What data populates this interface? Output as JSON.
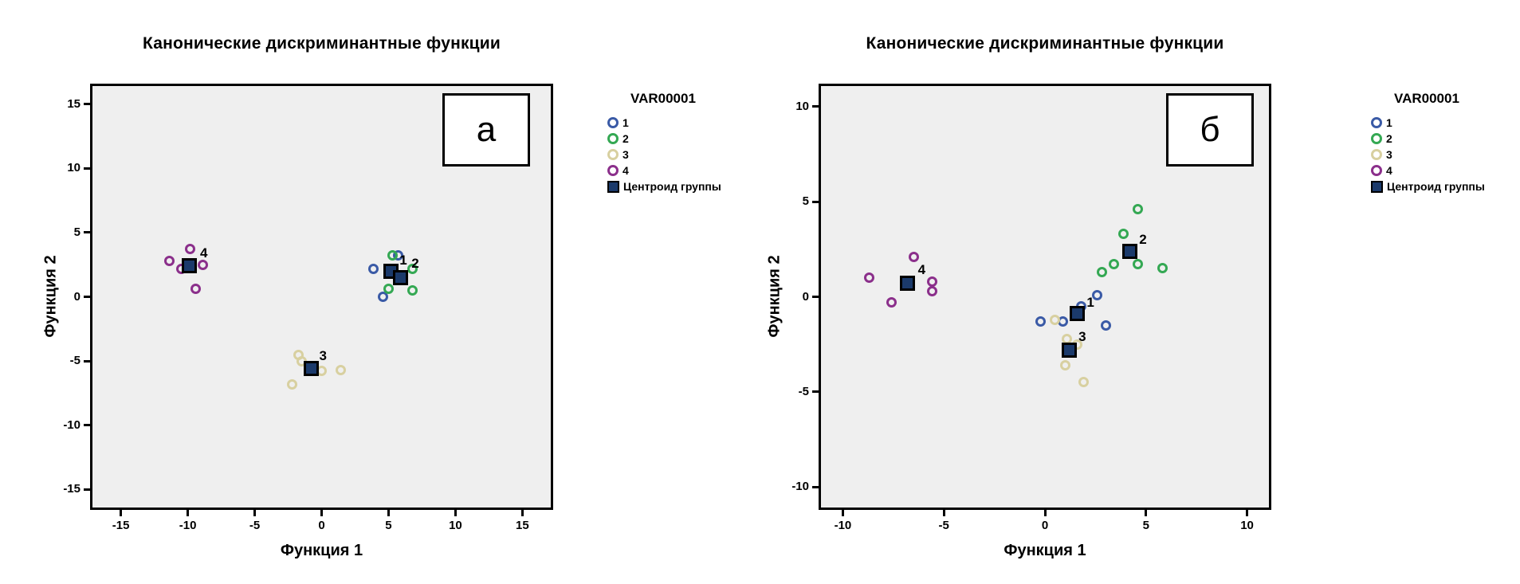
{
  "figure": {
    "background": "#ffffff",
    "description_labels": {
      "panel_a": "а",
      "panel_b": "б"
    }
  },
  "colors": {
    "group1": "#3a5aa6",
    "group2": "#34a853",
    "group3": "#d8d0a0",
    "group4": "#8b2f8b",
    "centroid_fill": "#1b3a6b",
    "plot_background": "#efefef",
    "frame": "#000000"
  },
  "chart_data": [
    {
      "type": "scatter",
      "panel_label": "а",
      "title": "Канонические дискриминантные функции",
      "xlabel": "Функция 1",
      "ylabel": "Функция 2",
      "xlim": [
        -17.3,
        17.3
      ],
      "ylim": [
        -16.6,
        16.6
      ],
      "xticks": [
        -15,
        -10,
        -5,
        0,
        5,
        10,
        15
      ],
      "yticks": [
        15,
        10,
        5,
        0,
        -5,
        -10,
        -15
      ],
      "grid": false,
      "plot_background": "#efefef",
      "legend": {
        "title": "VAR00001",
        "position": "right",
        "items": [
          {
            "label": "1",
            "marker": "circle",
            "color": "#3a5aa6"
          },
          {
            "label": "2",
            "marker": "circle",
            "color": "#34a853"
          },
          {
            "label": "3",
            "marker": "circle",
            "color": "#d8d0a0"
          },
          {
            "label": "4",
            "marker": "circle",
            "color": "#8b2f8b"
          },
          {
            "label": "Центроид группы",
            "marker": "square",
            "color": "#1b3a6b"
          }
        ]
      },
      "series": [
        {
          "name": "1",
          "marker": "circle",
          "color": "#3a5aa6",
          "points": [
            [
              5.7,
              3.2
            ],
            [
              3.9,
              2.2
            ],
            [
              4.6,
              0.0
            ]
          ]
        },
        {
          "name": "2",
          "marker": "circle",
          "color": "#34a853",
          "points": [
            [
              5.3,
              3.2
            ],
            [
              6.8,
              2.2
            ],
            [
              5.0,
              0.6
            ],
            [
              6.8,
              0.5
            ]
          ]
        },
        {
          "name": "3",
          "marker": "circle",
          "color": "#d8d0a0",
          "points": [
            [
              -1.7,
              -4.5
            ],
            [
              -1.5,
              -5.0
            ],
            [
              0.0,
              -5.8
            ],
            [
              1.4,
              -5.7
            ],
            [
              -2.2,
              -6.8
            ]
          ]
        },
        {
          "name": "4",
          "marker": "circle",
          "color": "#8b2f8b",
          "points": [
            [
              -9.8,
              3.7
            ],
            [
              -11.4,
              2.8
            ],
            [
              -8.9,
              2.5
            ],
            [
              -10.5,
              2.2
            ],
            [
              -9.4,
              0.6
            ]
          ]
        }
      ],
      "centroids": [
        {
          "label": "1",
          "x": 5.2,
          "y": 2.0,
          "label_x": 6.1,
          "label_y": 2.8
        },
        {
          "label": "2",
          "x": 5.9,
          "y": 1.5,
          "label_x": 7.0,
          "label_y": 2.6
        },
        {
          "label": "3",
          "x": -0.8,
          "y": -5.6,
          "label_x": 0.1,
          "label_y": -4.6
        },
        {
          "label": "4",
          "x": -9.9,
          "y": 2.4,
          "label_x": -8.8,
          "label_y": 3.4
        }
      ]
    },
    {
      "type": "scatter",
      "panel_label": "б",
      "title": "Канонические дискриминантные функции",
      "xlabel": "Функция 1",
      "ylabel": "Функция 2",
      "xlim": [
        -11.2,
        11.2
      ],
      "ylim": [
        -11.2,
        11.2
      ],
      "xticks": [
        -10,
        -5,
        0,
        5,
        10
      ],
      "yticks": [
        10,
        5,
        0,
        -5,
        -10
      ],
      "grid": false,
      "plot_background": "#efefef",
      "legend": {
        "title": "VAR00001",
        "position": "right",
        "items": [
          {
            "label": "1",
            "marker": "circle",
            "color": "#3a5aa6"
          },
          {
            "label": "2",
            "marker": "circle",
            "color": "#34a853"
          },
          {
            "label": "3",
            "marker": "circle",
            "color": "#d8d0a0"
          },
          {
            "label": "4",
            "marker": "circle",
            "color": "#8b2f8b"
          },
          {
            "label": "Центроид группы",
            "marker": "square",
            "color": "#1b3a6b"
          }
        ]
      },
      "series": [
        {
          "name": "1",
          "marker": "circle",
          "color": "#3a5aa6",
          "points": [
            [
              2.6,
              0.1
            ],
            [
              1.8,
              -0.5
            ],
            [
              0.9,
              -1.3
            ],
            [
              -0.2,
              -1.3
            ],
            [
              3.0,
              -1.5
            ]
          ]
        },
        {
          "name": "2",
          "marker": "circle",
          "color": "#34a853",
          "points": [
            [
              4.6,
              4.6
            ],
            [
              3.9,
              3.3
            ],
            [
              3.4,
              1.7
            ],
            [
              4.6,
              1.7
            ],
            [
              2.8,
              1.3
            ],
            [
              5.8,
              1.5
            ]
          ]
        },
        {
          "name": "3",
          "marker": "circle",
          "color": "#d8d0a0",
          "points": [
            [
              0.5,
              -1.2
            ],
            [
              1.1,
              -2.2
            ],
            [
              1.6,
              -2.5
            ],
            [
              1.0,
              -3.6
            ],
            [
              1.9,
              -4.5
            ]
          ]
        },
        {
          "name": "4",
          "marker": "circle",
          "color": "#8b2f8b",
          "points": [
            [
              -6.5,
              2.1
            ],
            [
              -8.7,
              1.0
            ],
            [
              -5.6,
              0.8
            ],
            [
              -5.6,
              0.3
            ],
            [
              -7.6,
              -0.3
            ]
          ]
        }
      ],
      "centroids": [
        {
          "label": "1",
          "x": 1.6,
          "y": -0.9,
          "label_x": 2.25,
          "label_y": -0.3
        },
        {
          "label": "2",
          "x": 4.2,
          "y": 2.4,
          "label_x": 4.85,
          "label_y": 3.0
        },
        {
          "label": "3",
          "x": 1.2,
          "y": -2.8,
          "label_x": 1.85,
          "label_y": -2.1
        },
        {
          "label": "4",
          "x": -6.8,
          "y": 0.7,
          "label_x": -6.1,
          "label_y": 1.4
        }
      ]
    }
  ]
}
